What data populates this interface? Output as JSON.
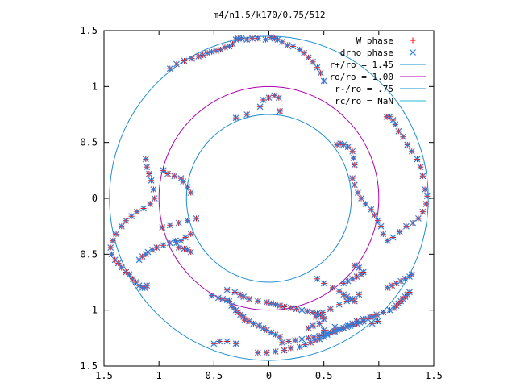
{
  "chart_data": {
    "type": "scatter",
    "title": "m4/n1.5/k170/0.75/512",
    "xlabel": "",
    "ylabel": "",
    "xlim": [
      -1.5,
      1.5
    ],
    "ylim": [
      -1.5,
      1.5
    ],
    "x_tick_values": [
      -1.5,
      -1,
      -0.5,
      0,
      0.5,
      1,
      1.5
    ],
    "x_tick_labels": [
      "1.5",
      "1",
      "0.5",
      "0",
      "0.5",
      "1",
      "1.5"
    ],
    "y_tick_values": [
      1.5,
      1,
      0.5,
      0,
      -0.5,
      -1,
      -1.5
    ],
    "y_tick_labels": [
      "1.5",
      "1",
      "0.5",
      "0",
      "0.5",
      "1",
      "1.5"
    ],
    "grid": false,
    "legend_position": "top-right",
    "legend": [
      {
        "label": "W phase",
        "kind": "plus",
        "color": "#ff0000"
      },
      {
        "label": "drho phase",
        "kind": "cross",
        "color": "#2f7fdc"
      },
      {
        "label": "r+/ro = 1.45",
        "kind": "line",
        "color": "#1e8fd0"
      },
      {
        "label": "ro/ro = 1.00",
        "kind": "line",
        "color": "#b000b0"
      },
      {
        "label": "r-/ro = .75",
        "kind": "line",
        "color": "#1e8fd0"
      },
      {
        "label": "rc/ro = NaN",
        "kind": "line",
        "color": "#20c0d8"
      }
    ],
    "circles": [
      {
        "radius": 1.45,
        "color": "#1e8fd0"
      },
      {
        "radius": 1.0,
        "color": "#b000b0"
      },
      {
        "radius": 0.75,
        "color": "#1e8fd0"
      }
    ],
    "series": [
      {
        "name": "W phase",
        "marker": "plus",
        "color": "#ff0000",
        "x": [
          -0.9,
          -0.84,
          -0.77,
          -0.7,
          -0.64,
          -0.6,
          -0.56,
          -0.52,
          -0.48,
          -0.44,
          -0.4,
          -0.36,
          -0.33,
          -0.3,
          -0.28,
          -0.25,
          -0.2,
          -0.15,
          -0.1,
          -0.03,
          0.02,
          0.05,
          0.08,
          0.12,
          0.17,
          0.22,
          0.28,
          0.32,
          0.36,
          0.4,
          0.44,
          0.47,
          0.5,
          -0.05,
          0.0,
          0.05,
          0.09,
          0.1,
          -0.08,
          -0.2,
          -0.3,
          0.62,
          0.65,
          0.68,
          0.72,
          0.76,
          0.77,
          0.78,
          1.07,
          1.1,
          1.13,
          1.15,
          1.18,
          1.22,
          1.26,
          1.3,
          1.35,
          1.38,
          1.4,
          1.42,
          1.44,
          1.43,
          1.4,
          1.36,
          1.31,
          1.25,
          1.19,
          1.13,
          1.08,
          1.04,
          1.02,
          0.99,
          0.96,
          0.93,
          0.88,
          0.84,
          0.81,
          0.78,
          0.76,
          -1.12,
          -1.11,
          -1.09,
          -1.07,
          -1.05,
          -1.04,
          -1.08,
          -1.14,
          -1.2,
          -1.25,
          -1.3,
          -1.34,
          -1.39,
          -1.42,
          -1.44,
          -1.43,
          -1.4,
          -1.37,
          -1.34,
          -1.3,
          -1.27,
          -1.24,
          -1.21,
          -1.18,
          -1.15,
          -1.13,
          -1.11,
          -0.71,
          -0.74,
          -0.78,
          -0.8,
          -0.86,
          -0.92,
          -0.96,
          -0.71,
          -0.76,
          -0.8,
          -0.85,
          -0.9,
          -0.96,
          -1.02,
          -1.06,
          -1.1,
          -1.12,
          -1.15,
          -1.18,
          -0.66,
          -0.74,
          -0.82,
          -0.9,
          -0.97,
          -0.71,
          -0.74,
          -0.77,
          -0.82,
          -0.84,
          -0.52,
          -0.46,
          -0.42,
          -0.38,
          -0.36,
          -0.34,
          -0.32,
          -0.3,
          -0.28,
          -0.26,
          -0.23,
          -0.22,
          -0.18,
          -0.14,
          -0.09,
          -0.05,
          -0.02,
          0.02,
          0.06,
          0.1,
          -0.5,
          -0.45,
          -0.38,
          -0.3,
          0.68,
          0.72,
          0.76,
          0.8,
          0.84,
          0.86,
          0.82,
          0.78,
          0.94,
          0.99,
          1.08,
          1.12,
          1.16,
          1.2,
          1.24,
          1.28,
          1.3,
          -0.1,
          -0.02,
          0.06,
          0.14,
          0.2,
          0.28,
          0.33,
          0.38,
          0.42,
          0.46,
          0.5,
          0.53,
          0.56,
          0.6,
          0.64,
          0.68,
          0.72,
          0.76,
          0.8,
          0.86,
          0.92,
          0.98,
          1.04,
          1.1,
          1.14,
          1.16,
          1.18,
          1.2,
          1.22,
          1.24,
          1.26,
          1.28,
          0.43,
          0.49,
          0.56,
          0.64,
          0.71,
          0.76,
          0.82,
          0.5,
          0.6,
          -0.38,
          -0.31,
          -0.26,
          -0.23,
          -0.18,
          -0.1,
          -0.02,
          0.02,
          0.06,
          0.1,
          0.14,
          0.2,
          0.25,
          0.3,
          0.35,
          0.4,
          0.44,
          0.47,
          0.49,
          0.5,
          0.46,
          0.4,
          0.36,
          0.12,
          0.18,
          0.24,
          0.3,
          0.36,
          0.41,
          0.46,
          0.5,
          0.53,
          0.56,
          0.59,
          0.62,
          0.65,
          0.68,
          0.71,
          0.74,
          0.77,
          0.8,
          0.83,
          0.86,
          0.9,
          0.95,
          0.44,
          0.5,
          0.58,
          0.64,
          0.68,
          0.71,
          0.74,
          0.78
        ],
        "y": [
          1.16,
          1.2,
          1.23,
          1.25,
          1.27,
          1.28,
          1.3,
          1.31,
          1.32,
          1.33,
          1.35,
          1.36,
          1.38,
          1.42,
          1.43,
          1.43,
          1.42,
          1.43,
          1.43,
          1.42,
          1.44,
          1.43,
          1.42,
          1.4,
          1.37,
          1.36,
          1.33,
          1.3,
          1.26,
          1.22,
          1.17,
          1.12,
          1.05,
          0.88,
          0.9,
          0.92,
          0.9,
          0.78,
          0.82,
          0.75,
          0.72,
          0.48,
          0.49,
          0.48,
          0.46,
          0.42,
          0.36,
          0.3,
          0.73,
          0.73,
          0.7,
          0.66,
          0.6,
          0.55,
          0.48,
          0.42,
          0.35,
          0.28,
          0.2,
          0.08,
          0.02,
          -0.05,
          -0.12,
          -0.18,
          -0.22,
          -0.25,
          -0.3,
          -0.35,
          -0.38,
          -0.32,
          -0.25,
          -0.2,
          -0.15,
          -0.1,
          -0.05,
          0.0,
          0.05,
          0.12,
          0.18,
          0.35,
          0.28,
          0.22,
          0.16,
          0.08,
          0.0,
          -0.05,
          -0.09,
          -0.12,
          -0.16,
          -0.2,
          -0.25,
          -0.32,
          -0.38,
          -0.44,
          -0.5,
          -0.55,
          -0.58,
          -0.62,
          -0.66,
          -0.68,
          -0.72,
          -0.75,
          -0.78,
          -0.8,
          -0.8,
          -0.78,
          0.05,
          0.1,
          0.15,
          0.18,
          0.2,
          0.22,
          0.25,
          -0.32,
          -0.35,
          -0.38,
          -0.38,
          -0.4,
          -0.42,
          -0.44,
          -0.46,
          -0.48,
          -0.5,
          -0.52,
          -0.55,
          -0.18,
          -0.2,
          -0.22,
          -0.24,
          -0.26,
          -0.48,
          -0.46,
          -0.45,
          -0.44,
          -0.4,
          -0.87,
          -0.89,
          -0.9,
          -0.91,
          -0.92,
          -0.96,
          -0.98,
          -1.0,
          -1.02,
          -1.04,
          -1.06,
          -1.09,
          -1.1,
          -1.12,
          -1.14,
          -1.16,
          -1.18,
          -1.2,
          -1.22,
          -1.24,
          -1.3,
          -1.28,
          -1.28,
          -1.3,
          -0.76,
          -0.74,
          -0.72,
          -0.7,
          -0.68,
          -0.66,
          -0.62,
          -0.6,
          -1.12,
          -1.1,
          -0.8,
          -0.78,
          -0.76,
          -0.74,
          -0.72,
          -0.7,
          -0.68,
          -1.38,
          -1.38,
          -1.37,
          -1.36,
          -1.34,
          -1.33,
          -1.31,
          -1.29,
          -1.27,
          -1.26,
          -1.24,
          -1.22,
          -1.2,
          -1.19,
          -1.17,
          -1.16,
          -1.14,
          -1.12,
          -1.1,
          -1.08,
          -1.06,
          -1.04,
          -1.02,
          -1.0,
          -0.98,
          -0.96,
          -0.94,
          -0.92,
          -0.9,
          -0.88,
          -0.86,
          -0.84,
          -1.06,
          -1.02,
          -0.99,
          -0.95,
          -0.92,
          -0.9,
          -0.86,
          -1.18,
          -1.15,
          -0.82,
          -0.84,
          -0.86,
          -0.88,
          -0.9,
          -0.92,
          -0.93,
          -0.94,
          -0.95,
          -0.96,
          -0.97,
          -0.98,
          -0.99,
          -1.0,
          -1.01,
          -1.02,
          -1.03,
          -1.04,
          -1.06,
          -1.08,
          -1.12,
          -1.14,
          -1.16,
          -1.29,
          -1.28,
          -1.27,
          -1.26,
          -1.25,
          -1.24,
          -1.23,
          -1.22,
          -1.21,
          -1.2,
          -1.19,
          -1.18,
          -1.17,
          -1.16,
          -1.15,
          -1.14,
          -1.13,
          -1.12,
          -1.11,
          -1.1,
          -1.08,
          -1.06,
          -0.72,
          -0.76,
          -0.8,
          -0.83,
          -0.86,
          -0.88,
          -0.9,
          -0.92
        ]
      },
      {
        "name": "drho phase",
        "marker": "cross",
        "color": "#2f7fdc",
        "x": [
          -0.9,
          -0.84,
          -0.77,
          -0.7,
          -0.64,
          -0.6,
          -0.56,
          -0.52,
          -0.48,
          -0.44,
          -0.4,
          -0.36,
          -0.33,
          -0.3,
          -0.28,
          -0.25,
          -0.2,
          -0.15,
          -0.1,
          -0.03,
          0.02,
          0.05,
          0.08,
          0.12,
          0.17,
          0.22,
          0.28,
          0.32,
          0.36,
          0.4,
          0.44,
          0.47,
          0.5,
          -0.05,
          0.0,
          0.05,
          0.09,
          0.1,
          -0.08,
          -0.2,
          -0.3,
          0.62,
          0.65,
          0.68,
          0.72,
          0.76,
          0.77,
          0.78,
          1.07,
          1.1,
          1.13,
          1.15,
          1.18,
          1.22,
          1.26,
          1.3,
          1.35,
          1.38,
          1.4,
          1.42,
          1.44,
          1.43,
          1.4,
          1.36,
          1.31,
          1.25,
          1.19,
          1.13,
          1.08,
          1.04,
          1.02,
          0.99,
          0.96,
          0.93,
          0.88,
          0.84,
          0.81,
          0.78,
          0.76,
          -1.12,
          -1.11,
          -1.09,
          -1.07,
          -1.05,
          -1.04,
          -1.08,
          -1.14,
          -1.2,
          -1.25,
          -1.3,
          -1.34,
          -1.39,
          -1.42,
          -1.44,
          -1.43,
          -1.4,
          -1.37,
          -1.34,
          -1.3,
          -1.27,
          -1.24,
          -1.21,
          -1.18,
          -1.15,
          -1.13,
          -1.11,
          -0.71,
          -0.74,
          -0.78,
          -0.8,
          -0.86,
          -0.92,
          -0.96,
          -0.71,
          -0.76,
          -0.8,
          -0.85,
          -0.9,
          -0.96,
          -1.02,
          -1.06,
          -1.1,
          -1.12,
          -1.15,
          -1.18,
          -0.66,
          -0.74,
          -0.82,
          -0.9,
          -0.97,
          -0.71,
          -0.74,
          -0.77,
          -0.82,
          -0.84,
          -0.52,
          -0.46,
          -0.42,
          -0.38,
          -0.36,
          -0.34,
          -0.32,
          -0.3,
          -0.28,
          -0.26,
          -0.23,
          -0.22,
          -0.18,
          -0.14,
          -0.09,
          -0.05,
          -0.02,
          0.02,
          0.06,
          0.1,
          -0.5,
          -0.45,
          -0.38,
          -0.3,
          0.68,
          0.72,
          0.76,
          0.8,
          0.84,
          0.86,
          0.82,
          0.78,
          0.94,
          0.99,
          1.08,
          1.12,
          1.16,
          1.2,
          1.24,
          1.28,
          1.3,
          -0.1,
          -0.02,
          0.06,
          0.14,
          0.2,
          0.28,
          0.33,
          0.38,
          0.42,
          0.46,
          0.5,
          0.53,
          0.56,
          0.6,
          0.64,
          0.68,
          0.72,
          0.76,
          0.8,
          0.86,
          0.92,
          0.98,
          1.04,
          1.1,
          1.14,
          1.16,
          1.18,
          1.2,
          1.22,
          1.24,
          1.26,
          1.28,
          0.43,
          0.49,
          0.56,
          0.64,
          0.71,
          0.76,
          0.82,
          0.5,
          0.6,
          -0.38,
          -0.31,
          -0.26,
          -0.23,
          -0.18,
          -0.1,
          -0.02,
          0.02,
          0.06,
          0.1,
          0.14,
          0.2,
          0.25,
          0.3,
          0.35,
          0.4,
          0.44,
          0.47,
          0.49,
          0.5,
          0.46,
          0.4,
          0.36,
          0.12,
          0.18,
          0.24,
          0.3,
          0.36,
          0.41,
          0.46,
          0.5,
          0.53,
          0.56,
          0.59,
          0.62,
          0.65,
          0.68,
          0.71,
          0.74,
          0.77,
          0.8,
          0.83,
          0.86,
          0.9,
          0.95,
          0.44,
          0.5,
          0.58,
          0.64,
          0.68,
          0.71,
          0.74,
          0.78
        ],
        "y": [
          1.16,
          1.2,
          1.23,
          1.25,
          1.27,
          1.28,
          1.3,
          1.31,
          1.32,
          1.33,
          1.35,
          1.36,
          1.38,
          1.42,
          1.43,
          1.43,
          1.42,
          1.43,
          1.43,
          1.42,
          1.44,
          1.43,
          1.42,
          1.4,
          1.37,
          1.36,
          1.33,
          1.3,
          1.26,
          1.22,
          1.17,
          1.12,
          1.05,
          0.88,
          0.9,
          0.92,
          0.9,
          0.78,
          0.82,
          0.75,
          0.72,
          0.48,
          0.49,
          0.48,
          0.46,
          0.42,
          0.36,
          0.3,
          0.73,
          0.73,
          0.7,
          0.66,
          0.6,
          0.55,
          0.48,
          0.42,
          0.35,
          0.28,
          0.2,
          0.08,
          0.02,
          -0.05,
          -0.12,
          -0.18,
          -0.22,
          -0.25,
          -0.3,
          -0.35,
          -0.38,
          -0.32,
          -0.25,
          -0.2,
          -0.15,
          -0.1,
          -0.05,
          0.0,
          0.05,
          0.12,
          0.18,
          0.35,
          0.28,
          0.22,
          0.16,
          0.08,
          0.0,
          -0.05,
          -0.09,
          -0.12,
          -0.16,
          -0.2,
          -0.25,
          -0.32,
          -0.38,
          -0.44,
          -0.5,
          -0.55,
          -0.58,
          -0.62,
          -0.66,
          -0.68,
          -0.72,
          -0.75,
          -0.78,
          -0.8,
          -0.8,
          -0.78,
          0.05,
          0.1,
          0.15,
          0.18,
          0.2,
          0.22,
          0.25,
          -0.32,
          -0.35,
          -0.38,
          -0.38,
          -0.4,
          -0.42,
          -0.44,
          -0.46,
          -0.48,
          -0.5,
          -0.52,
          -0.55,
          -0.18,
          -0.2,
          -0.22,
          -0.24,
          -0.26,
          -0.48,
          -0.46,
          -0.45,
          -0.44,
          -0.4,
          -0.87,
          -0.89,
          -0.9,
          -0.91,
          -0.92,
          -0.96,
          -0.98,
          -1.0,
          -1.02,
          -1.04,
          -1.06,
          -1.09,
          -1.1,
          -1.12,
          -1.14,
          -1.16,
          -1.18,
          -1.2,
          -1.22,
          -1.24,
          -1.3,
          -1.28,
          -1.28,
          -1.3,
          -0.76,
          -0.74,
          -0.72,
          -0.7,
          -0.68,
          -0.66,
          -0.62,
          -0.6,
          -1.12,
          -1.1,
          -0.8,
          -0.78,
          -0.76,
          -0.74,
          -0.72,
          -0.7,
          -0.68,
          -1.38,
          -1.38,
          -1.37,
          -1.36,
          -1.34,
          -1.33,
          -1.31,
          -1.29,
          -1.27,
          -1.26,
          -1.24,
          -1.22,
          -1.2,
          -1.19,
          -1.17,
          -1.16,
          -1.14,
          -1.12,
          -1.1,
          -1.08,
          -1.06,
          -1.04,
          -1.02,
          -1.0,
          -0.98,
          -0.96,
          -0.94,
          -0.92,
          -0.9,
          -0.88,
          -0.86,
          -0.84,
          -1.06,
          -1.02,
          -0.99,
          -0.95,
          -0.92,
          -0.9,
          -0.86,
          -1.18,
          -1.15,
          -0.82,
          -0.84,
          -0.86,
          -0.88,
          -0.9,
          -0.92,
          -0.93,
          -0.94,
          -0.95,
          -0.96,
          -0.97,
          -0.98,
          -0.99,
          -1.0,
          -1.01,
          -1.02,
          -1.03,
          -1.04,
          -1.06,
          -1.08,
          -1.12,
          -1.14,
          -1.16,
          -1.29,
          -1.28,
          -1.27,
          -1.26,
          -1.25,
          -1.24,
          -1.23,
          -1.22,
          -1.21,
          -1.2,
          -1.19,
          -1.18,
          -1.17,
          -1.16,
          -1.15,
          -1.14,
          -1.13,
          -1.12,
          -1.11,
          -1.1,
          -1.08,
          -1.06,
          -0.72,
          -0.76,
          -0.8,
          -0.83,
          -0.86,
          -0.88,
          -0.9,
          -0.92
        ]
      }
    ]
  }
}
